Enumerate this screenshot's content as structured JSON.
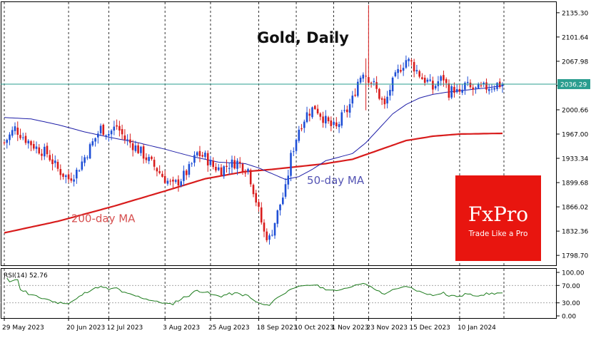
{
  "chart_data": {
    "type": "candlestick",
    "title": "Gold, Daily",
    "price_axis": {
      "range": [
        1785,
        2150
      ],
      "ticks": [
        "2135.30",
        "2101.64",
        "2067.98",
        "2034.32",
        "2000.66",
        "1967.00",
        "1933.34",
        "1899.68",
        "1866.02",
        "1832.36",
        "1798.70"
      ],
      "tick_values": [
        2135.3,
        2101.64,
        2067.98,
        2034.32,
        2000.66,
        1967.0,
        1933.34,
        1899.68,
        1866.02,
        1832.36,
        1798.7
      ],
      "current_price_label": "2036.29",
      "current_price": 2036.29
    },
    "x_axis": {
      "index_range": [
        0,
        186
      ],
      "labels": [
        "29 May 2023",
        "20 Jun 2023",
        "12 Jul 2023",
        "3 Aug 2023",
        "25 Aug 2023",
        "18 Sep 2023",
        "10 Oct 2023",
        "1 Nov 2023",
        "23 Nov 2023",
        "15 Dec 2023",
        "10 Jan 2024"
      ],
      "label_indices": [
        0,
        24,
        39,
        60,
        77,
        95,
        109,
        123,
        136,
        152,
        170
      ]
    },
    "price_series_points": [
      [
        0,
        1955
      ],
      [
        4,
        1975
      ],
      [
        8,
        1960
      ],
      [
        12,
        1948
      ],
      [
        16,
        1940
      ],
      [
        20,
        1918
      ],
      [
        24,
        1905
      ],
      [
        27,
        1915
      ],
      [
        30,
        1935
      ],
      [
        33,
        1955
      ],
      [
        36,
        1975
      ],
      [
        39,
        1968
      ],
      [
        42,
        1978
      ],
      [
        45,
        1960
      ],
      [
        48,
        1952
      ],
      [
        51,
        1942
      ],
      [
        54,
        1930
      ],
      [
        57,
        1918
      ],
      [
        60,
        1905
      ],
      [
        63,
        1895
      ],
      [
        66,
        1905
      ],
      [
        69,
        1918
      ],
      [
        72,
        1940
      ],
      [
        75,
        1935
      ],
      [
        78,
        1922
      ],
      [
        81,
        1918
      ],
      [
        84,
        1925
      ],
      [
        87,
        1928
      ],
      [
        89,
        1922
      ],
      [
        91,
        1918
      ],
      [
        93,
        1890
      ],
      [
        95,
        1860
      ],
      [
        97,
        1830
      ],
      [
        99,
        1822
      ],
      [
        101,
        1845
      ],
      [
        103,
        1870
      ],
      [
        105,
        1890
      ],
      [
        107,
        1935
      ],
      [
        110,
        1975
      ],
      [
        113,
        1995
      ],
      [
        116,
        2005
      ],
      [
        118,
        1995
      ],
      [
        120,
        1985
      ],
      [
        122,
        1978
      ],
      [
        124,
        1975
      ],
      [
        126,
        1990
      ],
      [
        128,
        2000
      ],
      [
        130,
        2015
      ],
      [
        132,
        2040
      ],
      [
        134,
        2055
      ],
      [
        136,
        2045
      ],
      [
        138,
        2035
      ],
      [
        140,
        2020
      ],
      [
        142,
        2005
      ],
      [
        144,
        2030
      ],
      [
        146,
        2045
      ],
      [
        148,
        2060
      ],
      [
        150,
        2070
      ],
      [
        152,
        2065
      ],
      [
        154,
        2055
      ],
      [
        156,
        2045
      ],
      [
        158,
        2040
      ],
      [
        160,
        2030
      ],
      [
        162,
        2040
      ],
      [
        164,
        2045
      ],
      [
        166,
        2025
      ],
      [
        168,
        2030
      ],
      [
        170,
        2020
      ],
      [
        172,
        2035
      ],
      [
        174,
        2030
      ],
      [
        176,
        2028
      ],
      [
        178,
        2030
      ],
      [
        180,
        2032
      ],
      [
        182,
        2034
      ],
      [
        184,
        2036
      ],
      [
        186,
        2036
      ]
    ],
    "spikes": [
      [
        135,
        2072,
        2000
      ],
      [
        136,
        2146,
        2040
      ]
    ],
    "ma50": {
      "name": "50-day MA",
      "color": "#1f1fa8",
      "points": [
        [
          0,
          1990
        ],
        [
          10,
          1988
        ],
        [
          20,
          1980
        ],
        [
          30,
          1970
        ],
        [
          40,
          1962
        ],
        [
          50,
          1955
        ],
        [
          60,
          1946
        ],
        [
          70,
          1936
        ],
        [
          80,
          1928
        ],
        [
          90,
          1926
        ],
        [
          95,
          1920
        ],
        [
          100,
          1912
        ],
        [
          105,
          1904
        ],
        [
          110,
          1908
        ],
        [
          115,
          1918
        ],
        [
          120,
          1930
        ],
        [
          125,
          1935
        ],
        [
          130,
          1940
        ],
        [
          135,
          1955
        ],
        [
          140,
          1975
        ],
        [
          145,
          1995
        ],
        [
          150,
          2008
        ],
        [
          155,
          2017
        ],
        [
          160,
          2022
        ],
        [
          165,
          2025
        ],
        [
          170,
          2027
        ],
        [
          175,
          2029
        ],
        [
          180,
          2031
        ],
        [
          186,
          2034
        ]
      ]
    },
    "ma200": {
      "name": "200-day MA",
      "color": "#d81c1c",
      "points": [
        [
          0,
          1830
        ],
        [
          20,
          1846
        ],
        [
          40,
          1866
        ],
        [
          60,
          1888
        ],
        [
          75,
          1905
        ],
        [
          90,
          1915
        ],
        [
          100,
          1918
        ],
        [
          110,
          1922
        ],
        [
          120,
          1926
        ],
        [
          130,
          1932
        ],
        [
          140,
          1945
        ],
        [
          150,
          1958
        ],
        [
          160,
          1964
        ],
        [
          170,
          1967
        ],
        [
          186,
          1968
        ]
      ]
    },
    "annotations": [
      {
        "text": "50-day MA",
        "color": "#5353b3",
        "index": 113,
        "price": 1898
      },
      {
        "text": "200-day MA",
        "color": "#d65050",
        "index": 25,
        "price": 1845
      }
    ],
    "rsi": {
      "label": "RSI(14) 52.76",
      "period": 14,
      "current": 52.76,
      "range": [
        0,
        100
      ],
      "levels": [
        30,
        70
      ],
      "ticks": [
        "100.00",
        "70.00",
        "30.00",
        "0.00"
      ],
      "tick_values": [
        100,
        70,
        30,
        0
      ],
      "color": "#1a7a1a"
    },
    "grid": true
  },
  "brand": {
    "name": "FxPro",
    "tagline": "Trade Like a Pro",
    "bg_color": "#e8150f"
  },
  "colors": {
    "bull": "#1f4fd6",
    "bear": "#d81c1c",
    "price_line": "#2a9d8f",
    "label_bg": "#2a9d8f"
  }
}
